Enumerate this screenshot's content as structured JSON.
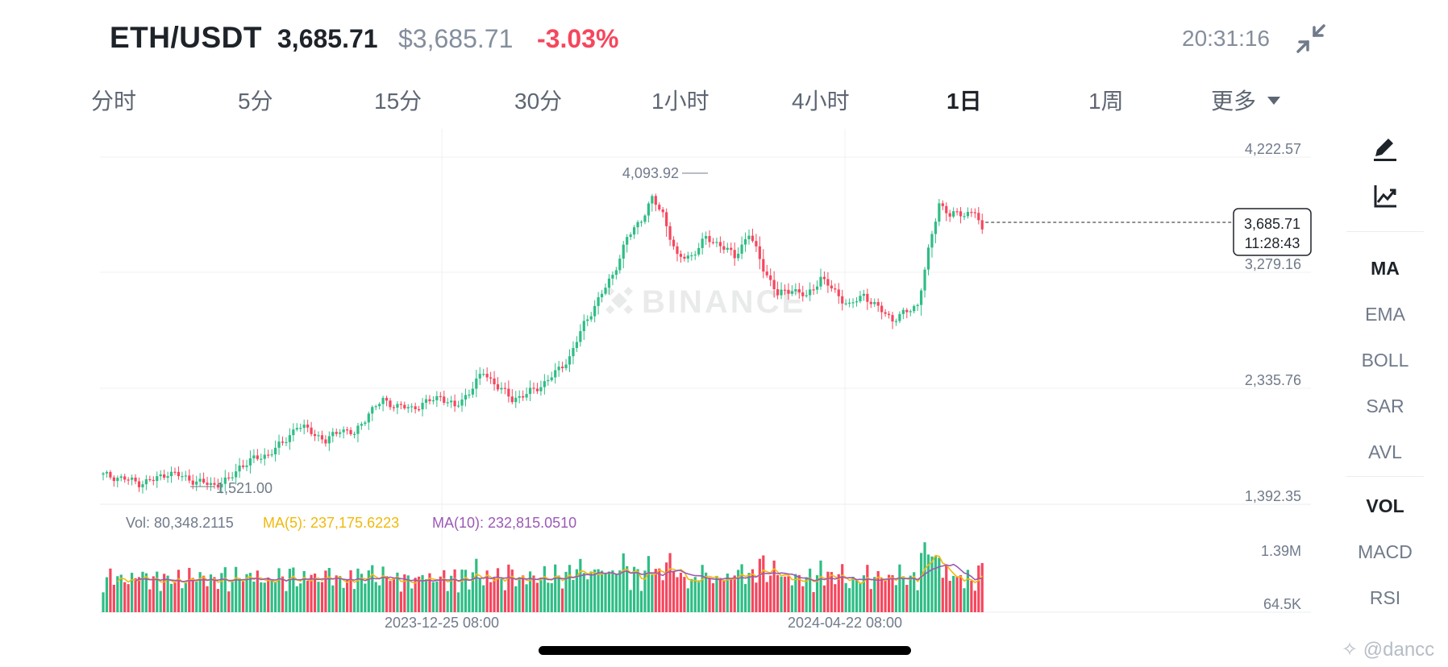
{
  "header": {
    "pair": "ETH/USDT",
    "last_price": "3,685.71",
    "usd_price": "$3,685.71",
    "change": "-3.03%",
    "time": "20:31:16",
    "collapse_icon": "collapse-icon"
  },
  "tabs": [
    {
      "label": "分时",
      "active": false
    },
    {
      "label": "5分",
      "active": false
    },
    {
      "label": "15分",
      "active": false
    },
    {
      "label": "30分",
      "active": false
    },
    {
      "label": "1小时",
      "active": false
    },
    {
      "label": "4小时",
      "active": false
    },
    {
      "label": "1日",
      "active": true
    },
    {
      "label": "1周",
      "active": false
    },
    {
      "label": "更多",
      "active": false
    }
  ],
  "sidebar": {
    "icons": [
      "draw-icon",
      "chart-indicator-icon"
    ],
    "main_indicators": [
      {
        "label": "MA",
        "active": true
      },
      {
        "label": "EMA",
        "active": false
      },
      {
        "label": "BOLL",
        "active": false
      },
      {
        "label": "SAR",
        "active": false
      },
      {
        "label": "AVL",
        "active": false
      }
    ],
    "sub_indicators": [
      {
        "label": "VOL",
        "active": true
      },
      {
        "label": "MACD",
        "active": false
      },
      {
        "label": "RSI",
        "active": false
      }
    ]
  },
  "chart_data": {
    "type": "candlestick",
    "price_axis": {
      "ticks": [
        "4,222.57",
        "3,279.16",
        "2,335.76",
        "1,392.35"
      ],
      "values": [
        4222.57,
        3279.16,
        2335.76,
        1392.35
      ]
    },
    "time_axis_labels": [
      "2023-12-25 08:00",
      "2024-04-22 08:00"
    ],
    "high_marker": "4,093.92",
    "low_marker": "1,521.00",
    "current_price_label": "3,685.71",
    "countdown": "11:28:43",
    "watermark": "BINANCE",
    "colors": {
      "up": "#2ebd85",
      "down": "#f6465d",
      "ma5": "#f0b90b",
      "ma10": "#9b59b6"
    },
    "volume": {
      "vol_label": "Vol: 80,348.2115",
      "ma5_label": "MA(5): 237,175.6223",
      "ma10_label": "MA(10): 232,815.0510",
      "axis_ticks": [
        "1.39M",
        "64.5K"
      ]
    },
    "anchors": [
      [
        0,
        1630
      ],
      [
        6,
        1600
      ],
      [
        10,
        1565
      ],
      [
        14,
        1590
      ],
      [
        18,
        1650
      ],
      [
        22,
        1620
      ],
      [
        26,
        1575
      ],
      [
        31,
        1550
      ],
      [
        35,
        1590
      ],
      [
        38,
        1700
      ],
      [
        42,
        1760
      ],
      [
        46,
        1800
      ],
      [
        50,
        1890
      ],
      [
        54,
        2030
      ],
      [
        58,
        1990
      ],
      [
        62,
        1900
      ],
      [
        66,
        2010
      ],
      [
        70,
        1960
      ],
      [
        74,
        2140
      ],
      [
        78,
        2240
      ],
      [
        82,
        2190
      ],
      [
        86,
        2175
      ],
      [
        90,
        2220
      ],
      [
        94,
        2275
      ],
      [
        98,
        2180
      ],
      [
        102,
        2310
      ],
      [
        106,
        2470
      ],
      [
        110,
        2350
      ],
      [
        114,
        2250
      ],
      [
        118,
        2290
      ],
      [
        122,
        2360
      ],
      [
        126,
        2460
      ],
      [
        130,
        2590
      ],
      [
        134,
        2860
      ],
      [
        138,
        3060
      ],
      [
        142,
        3260
      ],
      [
        146,
        3560
      ],
      [
        150,
        3720
      ],
      [
        153,
        3880
      ],
      [
        156,
        3760
      ],
      [
        160,
        3400
      ],
      [
        164,
        3420
      ],
      [
        168,
        3560
      ],
      [
        172,
        3510
      ],
      [
        176,
        3410
      ],
      [
        180,
        3600
      ],
      [
        184,
        3320
      ],
      [
        188,
        3100
      ],
      [
        192,
        3150
      ],
      [
        196,
        3080
      ],
      [
        200,
        3240
      ],
      [
        204,
        3120
      ],
      [
        208,
        3010
      ],
      [
        212,
        3100
      ],
      [
        216,
        2990
      ],
      [
        220,
        2900
      ],
      [
        224,
        2960
      ],
      [
        227,
        3020
      ],
      [
        230,
        3450
      ],
      [
        233,
        3850
      ],
      [
        236,
        3750
      ],
      [
        240,
        3760
      ],
      [
        243,
        3785
      ],
      [
        245,
        3600
      ]
    ]
  }
}
